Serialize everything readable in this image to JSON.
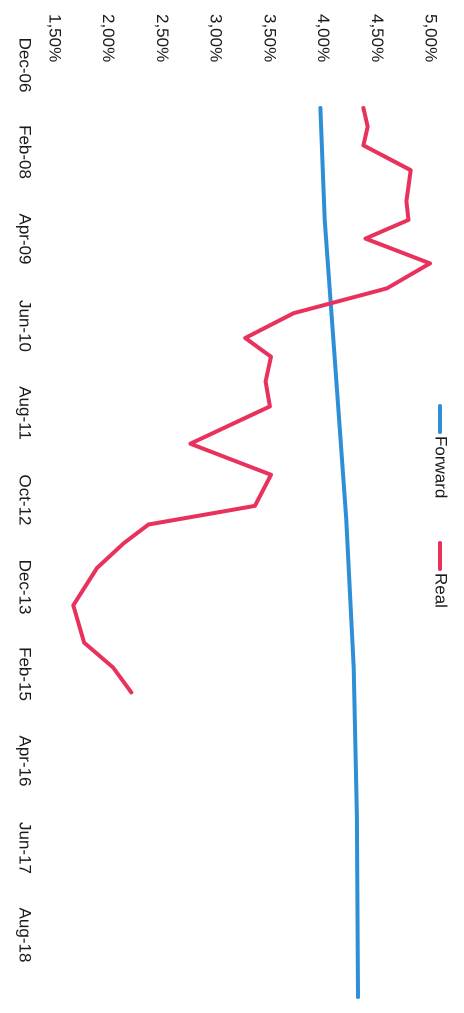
{
  "chart_data": {
    "type": "line",
    "orientation": "rotated-90-clockwise",
    "title": "",
    "xlabel": "",
    "ylabel": "",
    "x_tick_labels": [
      "Dec-06",
      "Feb-08",
      "Apr-09",
      "Jun-10",
      "Aug-11",
      "Oct-12",
      "Dec-13",
      "Feb-15",
      "Apr-16",
      "Jun-17",
      "Aug-18"
    ],
    "y_tick_labels": [
      "1,50%",
      "2,00%",
      "2,50%",
      "3,00%",
      "3,50%",
      "4,00%",
      "4,50%",
      "5,00%"
    ],
    "ylim": [
      1.5,
      5.0
    ],
    "x_range": [
      "2006-12",
      "2018-11"
    ],
    "grid": false,
    "legend_position": "top-right",
    "series": [
      {
        "name": "Forward",
        "color": "#2e8fd6",
        "points": [
          [
            "2006-12",
            3.98
          ],
          [
            "2008-06",
            4.02
          ],
          [
            "2010-06",
            4.12
          ],
          [
            "2012-06",
            4.22
          ],
          [
            "2014-06",
            4.29
          ],
          [
            "2016-06",
            4.32
          ],
          [
            "2018-11",
            4.33
          ]
        ]
      },
      {
        "name": "Real",
        "color": "#e8315c",
        "points": [
          [
            "2006-12",
            4.38
          ],
          [
            "2007-03",
            4.42
          ],
          [
            "2007-06",
            4.38
          ],
          [
            "2007-10",
            4.82
          ],
          [
            "2008-03",
            4.78
          ],
          [
            "2008-06",
            4.8
          ],
          [
            "2008-09",
            4.4
          ],
          [
            "2009-01",
            5.0
          ],
          [
            "2009-05",
            4.6
          ],
          [
            "2009-09",
            3.73
          ],
          [
            "2010-01",
            3.28
          ],
          [
            "2010-04",
            3.52
          ],
          [
            "2010-08",
            3.47
          ],
          [
            "2010-12",
            3.51
          ],
          [
            "2011-06",
            2.77
          ],
          [
            "2011-11",
            3.52
          ],
          [
            "2012-04",
            3.37
          ],
          [
            "2012-07",
            2.38
          ],
          [
            "2012-10",
            2.15
          ],
          [
            "2013-02",
            1.9
          ],
          [
            "2013-08",
            1.68
          ],
          [
            "2014-02",
            1.78
          ],
          [
            "2014-06",
            2.05
          ],
          [
            "2014-10",
            2.22
          ]
        ]
      }
    ]
  }
}
